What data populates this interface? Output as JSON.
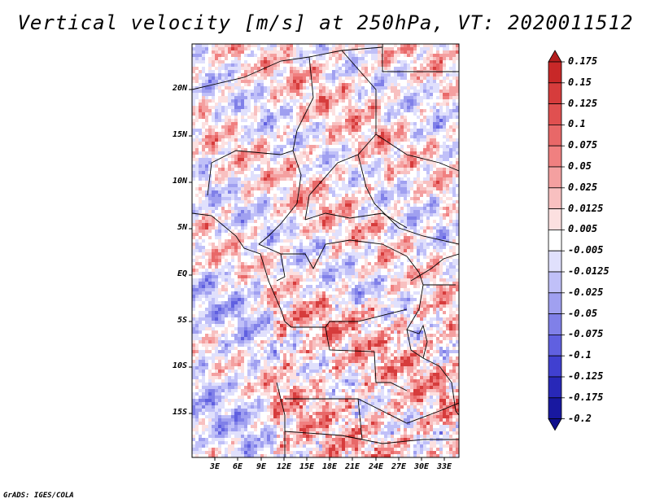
{
  "title": "Vertical velocity [m/s] at 250hPa, VT: 2020011512",
  "footer": "GrADS: IGES/COLA",
  "lat_axis": [
    "20N",
    "15N",
    "10N",
    "5N",
    "EQ",
    "5S",
    "10S",
    "15S"
  ],
  "lon_axis": [
    "3E",
    "6E",
    "9E",
    "12E",
    "15E",
    "18E",
    "21E",
    "24E",
    "27E",
    "30E",
    "33E"
  ],
  "colorbar": {
    "labels": [
      "0.175",
      "0.15",
      "0.125",
      "0.1",
      "0.075",
      "0.05",
      "0.025",
      "0.0125",
      "0.005",
      "-0.005",
      "-0.0125",
      "-0.025",
      "-0.05",
      "-0.075",
      "-0.1",
      "-0.125",
      "-0.175",
      "-0.2"
    ],
    "colors": [
      "#b41e1e",
      "#c82828",
      "#d63c3c",
      "#e05050",
      "#e86868",
      "#f08080",
      "#f4a0a0",
      "#f8c0c0",
      "#fce0e0",
      "#ffffff",
      "#e0e0fc",
      "#c0c0f8",
      "#a0a0f0",
      "#8080e8",
      "#6060e0",
      "#4040d0",
      "#2828b8",
      "#1818a0",
      "#10108c"
    ]
  }
}
